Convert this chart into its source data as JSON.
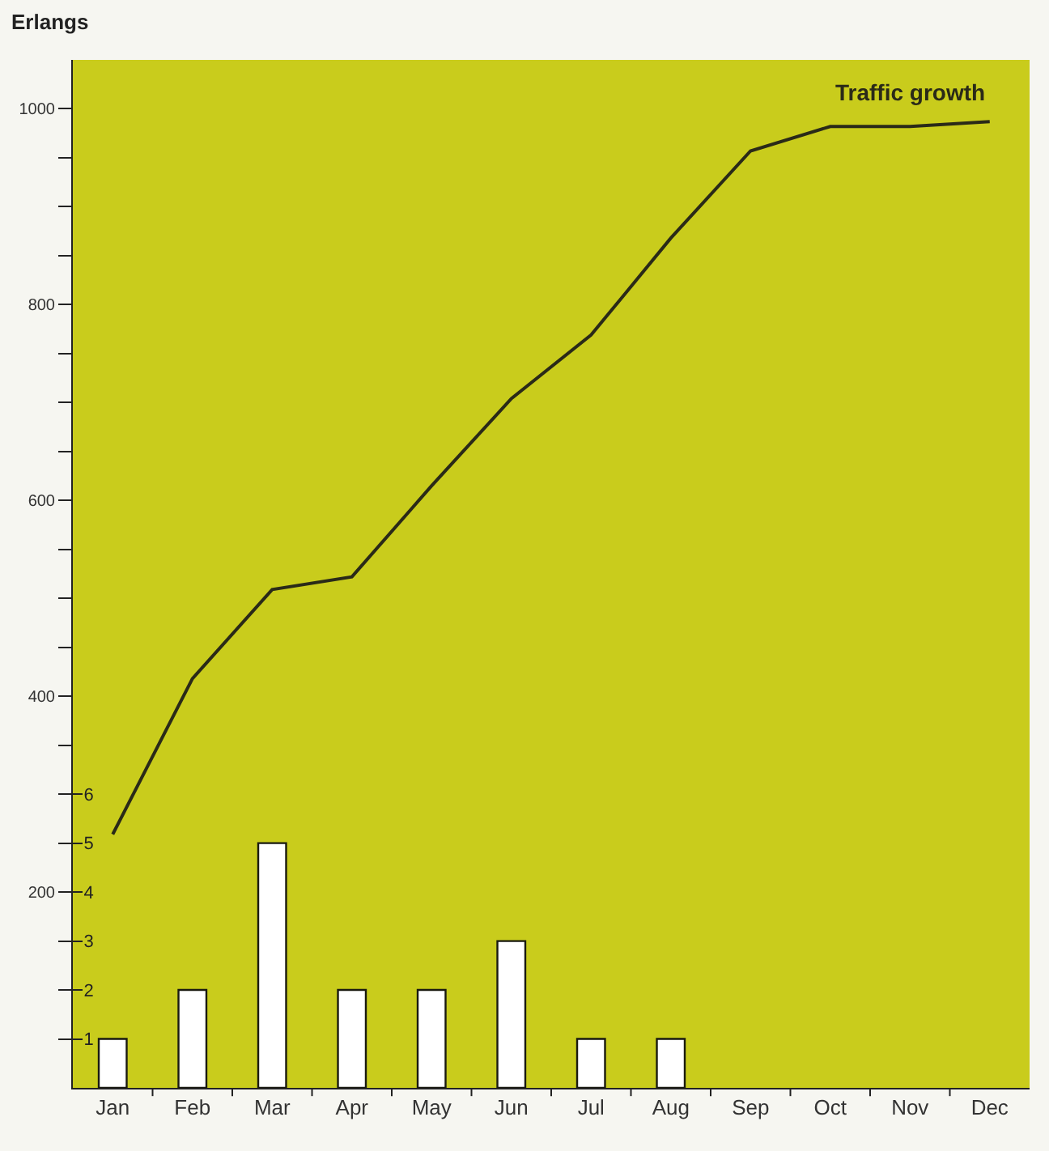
{
  "chart_data": {
    "type": "bar",
    "ylabel": "Erlangs",
    "categories": [
      "Jan",
      "Feb",
      "Mar",
      "Apr",
      "May",
      "Jun",
      "Jul",
      "Aug",
      "Sep",
      "Oct",
      "Nov",
      "Dec"
    ],
    "series": [
      {
        "axis": "y2",
        "color": "#ffffff",
        "values": [
          1,
          2,
          5,
          2,
          2,
          3,
          1,
          1,
          null,
          null,
          null,
          null
        ]
      },
      {
        "type": "line",
        "name": "Traffic growth",
        "color": "#2a2a18",
        "values": [
          259,
          418,
          509,
          522,
          615,
          704,
          769,
          868,
          957,
          982,
          982,
          987
        ]
      }
    ],
    "ylim": [
      0,
      1050
    ],
    "yticks": [
      {
        "value": 50,
        "label": null
      },
      {
        "value": 100,
        "label": null
      },
      {
        "value": 150,
        "label": null
      },
      200,
      {
        "value": 250,
        "label": null
      },
      {
        "value": 300,
        "label": null
      },
      {
        "value": 350,
        "label": null
      },
      400,
      {
        "value": 450,
        "label": null
      },
      {
        "value": 500,
        "label": null
      },
      {
        "value": 550,
        "label": null
      },
      600,
      {
        "value": 650,
        "label": null
      },
      {
        "value": 700,
        "label": null
      },
      {
        "value": 750,
        "label": null
      },
      800,
      {
        "value": 850,
        "label": null
      },
      {
        "value": 900,
        "label": null
      },
      {
        "value": 950,
        "label": null
      },
      1000
    ],
    "y2lim": [
      0,
      21
    ],
    "y2ticks": [
      1,
      2,
      3,
      4,
      5,
      6
    ],
    "grid": false,
    "legend": false
  }
}
